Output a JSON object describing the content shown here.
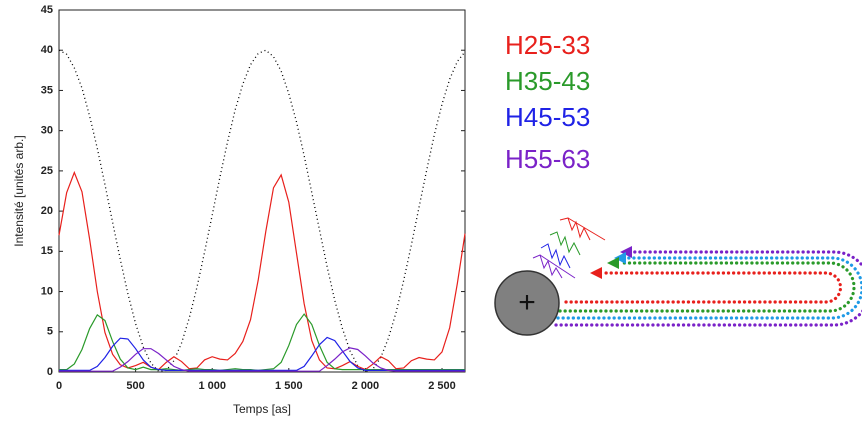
{
  "chart_data": {
    "type": "line",
    "xlabel": "Temps [as]",
    "ylabel": "Intensité [unités arb.]",
    "xlim": [
      0,
      2650
    ],
    "ylim": [
      0,
      45
    ],
    "xticks": [
      0,
      500,
      {
        "value": 1000,
        "label": "1 000"
      },
      {
        "value": 1500,
        "label": "1 500"
      },
      {
        "value": 2000,
        "label": "2 000"
      },
      {
        "value": 2500,
        "label": "2 500"
      }
    ],
    "yticks": [
      0,
      5,
      10,
      15,
      20,
      25,
      30,
      35,
      40,
      45
    ],
    "x": [
      0,
      50,
      100,
      150,
      200,
      250,
      300,
      350,
      400,
      450,
      500,
      550,
      600,
      650,
      700,
      750,
      800,
      850,
      900,
      950,
      1000,
      1050,
      1100,
      1150,
      1200,
      1250,
      1300,
      1350,
      1400,
      1450,
      1500,
      1550,
      1600,
      1650,
      1700,
      1750,
      1800,
      1850,
      1900,
      1950,
      2000,
      2050,
      2100,
      2150,
      2200,
      2250,
      2300,
      2350,
      2400,
      2450,
      2500,
      2550,
      2600,
      2650
    ],
    "series": [
      {
        "color": "#000000",
        "dash": "dotted",
        "values": [
          40,
          39.5,
          37.8,
          35.3,
          31.8,
          27.8,
          23.3,
          18.6,
          14.0,
          9.7,
          6.0,
          3.1,
          1.1,
          0.1,
          0.2,
          1.4,
          3.6,
          6.7,
          10.5,
          14.9,
          19.5,
          24.2,
          28.6,
          32.6,
          35.8,
          38.2,
          39.6,
          40.0,
          39.2,
          37.4,
          34.6,
          31.1,
          26.9,
          22.3,
          17.7,
          13.1,
          8.9,
          5.4,
          2.6,
          0.8,
          0.0,
          0.4,
          1.8,
          4.2,
          7.4,
          11.4,
          15.8,
          20.5,
          25.1,
          29.5,
          33.3,
          36.4,
          38.6,
          39.8
        ]
      },
      {
        "name": "H25-33",
        "color": "#e8201c",
        "values": [
          17.0,
          22.3,
          24.8,
          22.4,
          16.5,
          10.0,
          4.9,
          2.2,
          0.9,
          0.5,
          0.8,
          1.2,
          0.6,
          0.3,
          1.2,
          1.9,
          1.3,
          0.4,
          0.5,
          1.5,
          1.9,
          1.6,
          1.5,
          2.3,
          3.8,
          6.5,
          11.4,
          17.5,
          22.9,
          24.5,
          21.1,
          14.8,
          8.5,
          3.9,
          1.5,
          0.5,
          0.4,
          0.8,
          1.3,
          0.7,
          0.3,
          1.0,
          1.9,
          1.4,
          0.4,
          0.5,
          1.4,
          1.8,
          1.6,
          1.5,
          2.5,
          5.5,
          11.0,
          17.2
        ]
      },
      {
        "name": "H35-43",
        "color": "#2a9a2a",
        "values": [
          0.3,
          0.3,
          1.0,
          2.8,
          5.4,
          7.1,
          6.4,
          3.8,
          1.6,
          0.5,
          0.3,
          0.6,
          0.3,
          0.3,
          0.4,
          0.3,
          0.2,
          0.3,
          0.4,
          0.3,
          0.3,
          0.2,
          0.3,
          0.4,
          0.3,
          0.3,
          0.2,
          0.3,
          0.4,
          1.2,
          3.3,
          5.9,
          7.2,
          5.9,
          3.3,
          1.2,
          0.4,
          0.3,
          0.3,
          0.3,
          0.3,
          0.3,
          0.3,
          0.3,
          0.3,
          0.3,
          0.3,
          0.3,
          0.3,
          0.3,
          0.3,
          0.3,
          0.3,
          0.3
        ]
      },
      {
        "name": "H45-53",
        "color": "#1f22e6",
        "values": [
          0.2,
          0.2,
          0.2,
          0.2,
          0.2,
          0.7,
          1.8,
          3.2,
          4.2,
          4.1,
          2.9,
          1.5,
          0.6,
          0.3,
          0.2,
          0.2,
          0.2,
          0.2,
          0.2,
          0.2,
          0.2,
          0.2,
          0.2,
          0.2,
          0.2,
          0.2,
          0.2,
          0.2,
          0.2,
          0.2,
          0.2,
          0.2,
          0.7,
          2.0,
          3.4,
          4.3,
          3.9,
          2.6,
          1.3,
          0.5,
          0.2,
          0.2,
          0.2,
          0.2,
          0.2,
          0.2,
          0.2,
          0.2,
          0.2,
          0.2,
          0.2,
          0.2,
          0.2,
          0.2
        ]
      },
      {
        "name": "H55-63",
        "color": "#7a22c8",
        "values": [
          0.1,
          0.1,
          0.1,
          0.1,
          0.1,
          0.1,
          0.1,
          0.1,
          0.6,
          1.3,
          2.2,
          2.9,
          2.9,
          2.3,
          1.5,
          0.7,
          0.3,
          0.1,
          0.1,
          0.1,
          0.1,
          0.1,
          0.1,
          0.1,
          0.1,
          0.1,
          0.1,
          0.1,
          0.1,
          0.1,
          0.1,
          0.1,
          0.1,
          0.1,
          0.1,
          0.8,
          1.6,
          2.5,
          3.0,
          2.8,
          2.0,
          1.1,
          0.5,
          0.2,
          0.1,
          0.1,
          0.1,
          0.1,
          0.1,
          0.1,
          0.1,
          0.1,
          0.1,
          0.1
        ]
      }
    ]
  },
  "diagram": {
    "nucleus_label": "+"
  }
}
